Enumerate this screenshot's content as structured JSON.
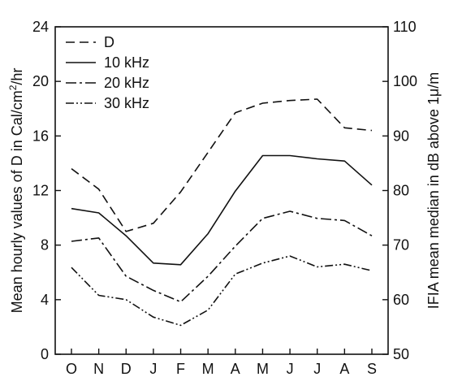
{
  "chart_data": {
    "type": "line",
    "title": "",
    "categories": [
      "O",
      "N",
      "D",
      "J",
      "F",
      "M",
      "A",
      "M",
      "J",
      "J",
      "A",
      "S"
    ],
    "ylabel_left": "Mean hourly values of D in Cal/cm",
    "ylabel_left_superscript": "2",
    "ylabel_left_suffix": "/hr",
    "ylabel_right": "IFIA mean median in dB above 1μ/m",
    "ylim_left": [
      0,
      24
    ],
    "ylim_right": [
      50,
      110
    ],
    "yticks_left": [
      "0",
      "4",
      "8",
      "12",
      "16",
      "20",
      "24"
    ],
    "yticks_right": [
      "50",
      "60",
      "70",
      "80",
      "90",
      "100",
      "110"
    ],
    "grid": false,
    "legend_position": "top-left",
    "series": [
      {
        "name": "D",
        "axis": "left",
        "dash": "dashed",
        "values": [
          13.6,
          12.1,
          9.0,
          9.6,
          11.9,
          14.8,
          17.7,
          18.4,
          18.6,
          18.7,
          16.6,
          16.4
        ]
      },
      {
        "name": "10 kHz",
        "axis": "right",
        "dash": "solid",
        "values": [
          76.7,
          75.9,
          71.7,
          66.7,
          66.4,
          72.1,
          79.9,
          86.4,
          86.4,
          85.8,
          85.4,
          81.0
        ]
      },
      {
        "name": "20 kHz",
        "axis": "right",
        "dash": "dashdot",
        "values": [
          70.7,
          71.3,
          64.3,
          61.7,
          59.6,
          64.3,
          69.8,
          74.9,
          76.2,
          74.9,
          74.5,
          71.7
        ]
      },
      {
        "name": "30 kHz",
        "axis": "right",
        "dash": "dashdotdot",
        "values": [
          65.9,
          60.8,
          60.0,
          56.8,
          55.3,
          58.1,
          64.7,
          66.7,
          68.0,
          66.0,
          66.5,
          65.3
        ]
      }
    ]
  }
}
